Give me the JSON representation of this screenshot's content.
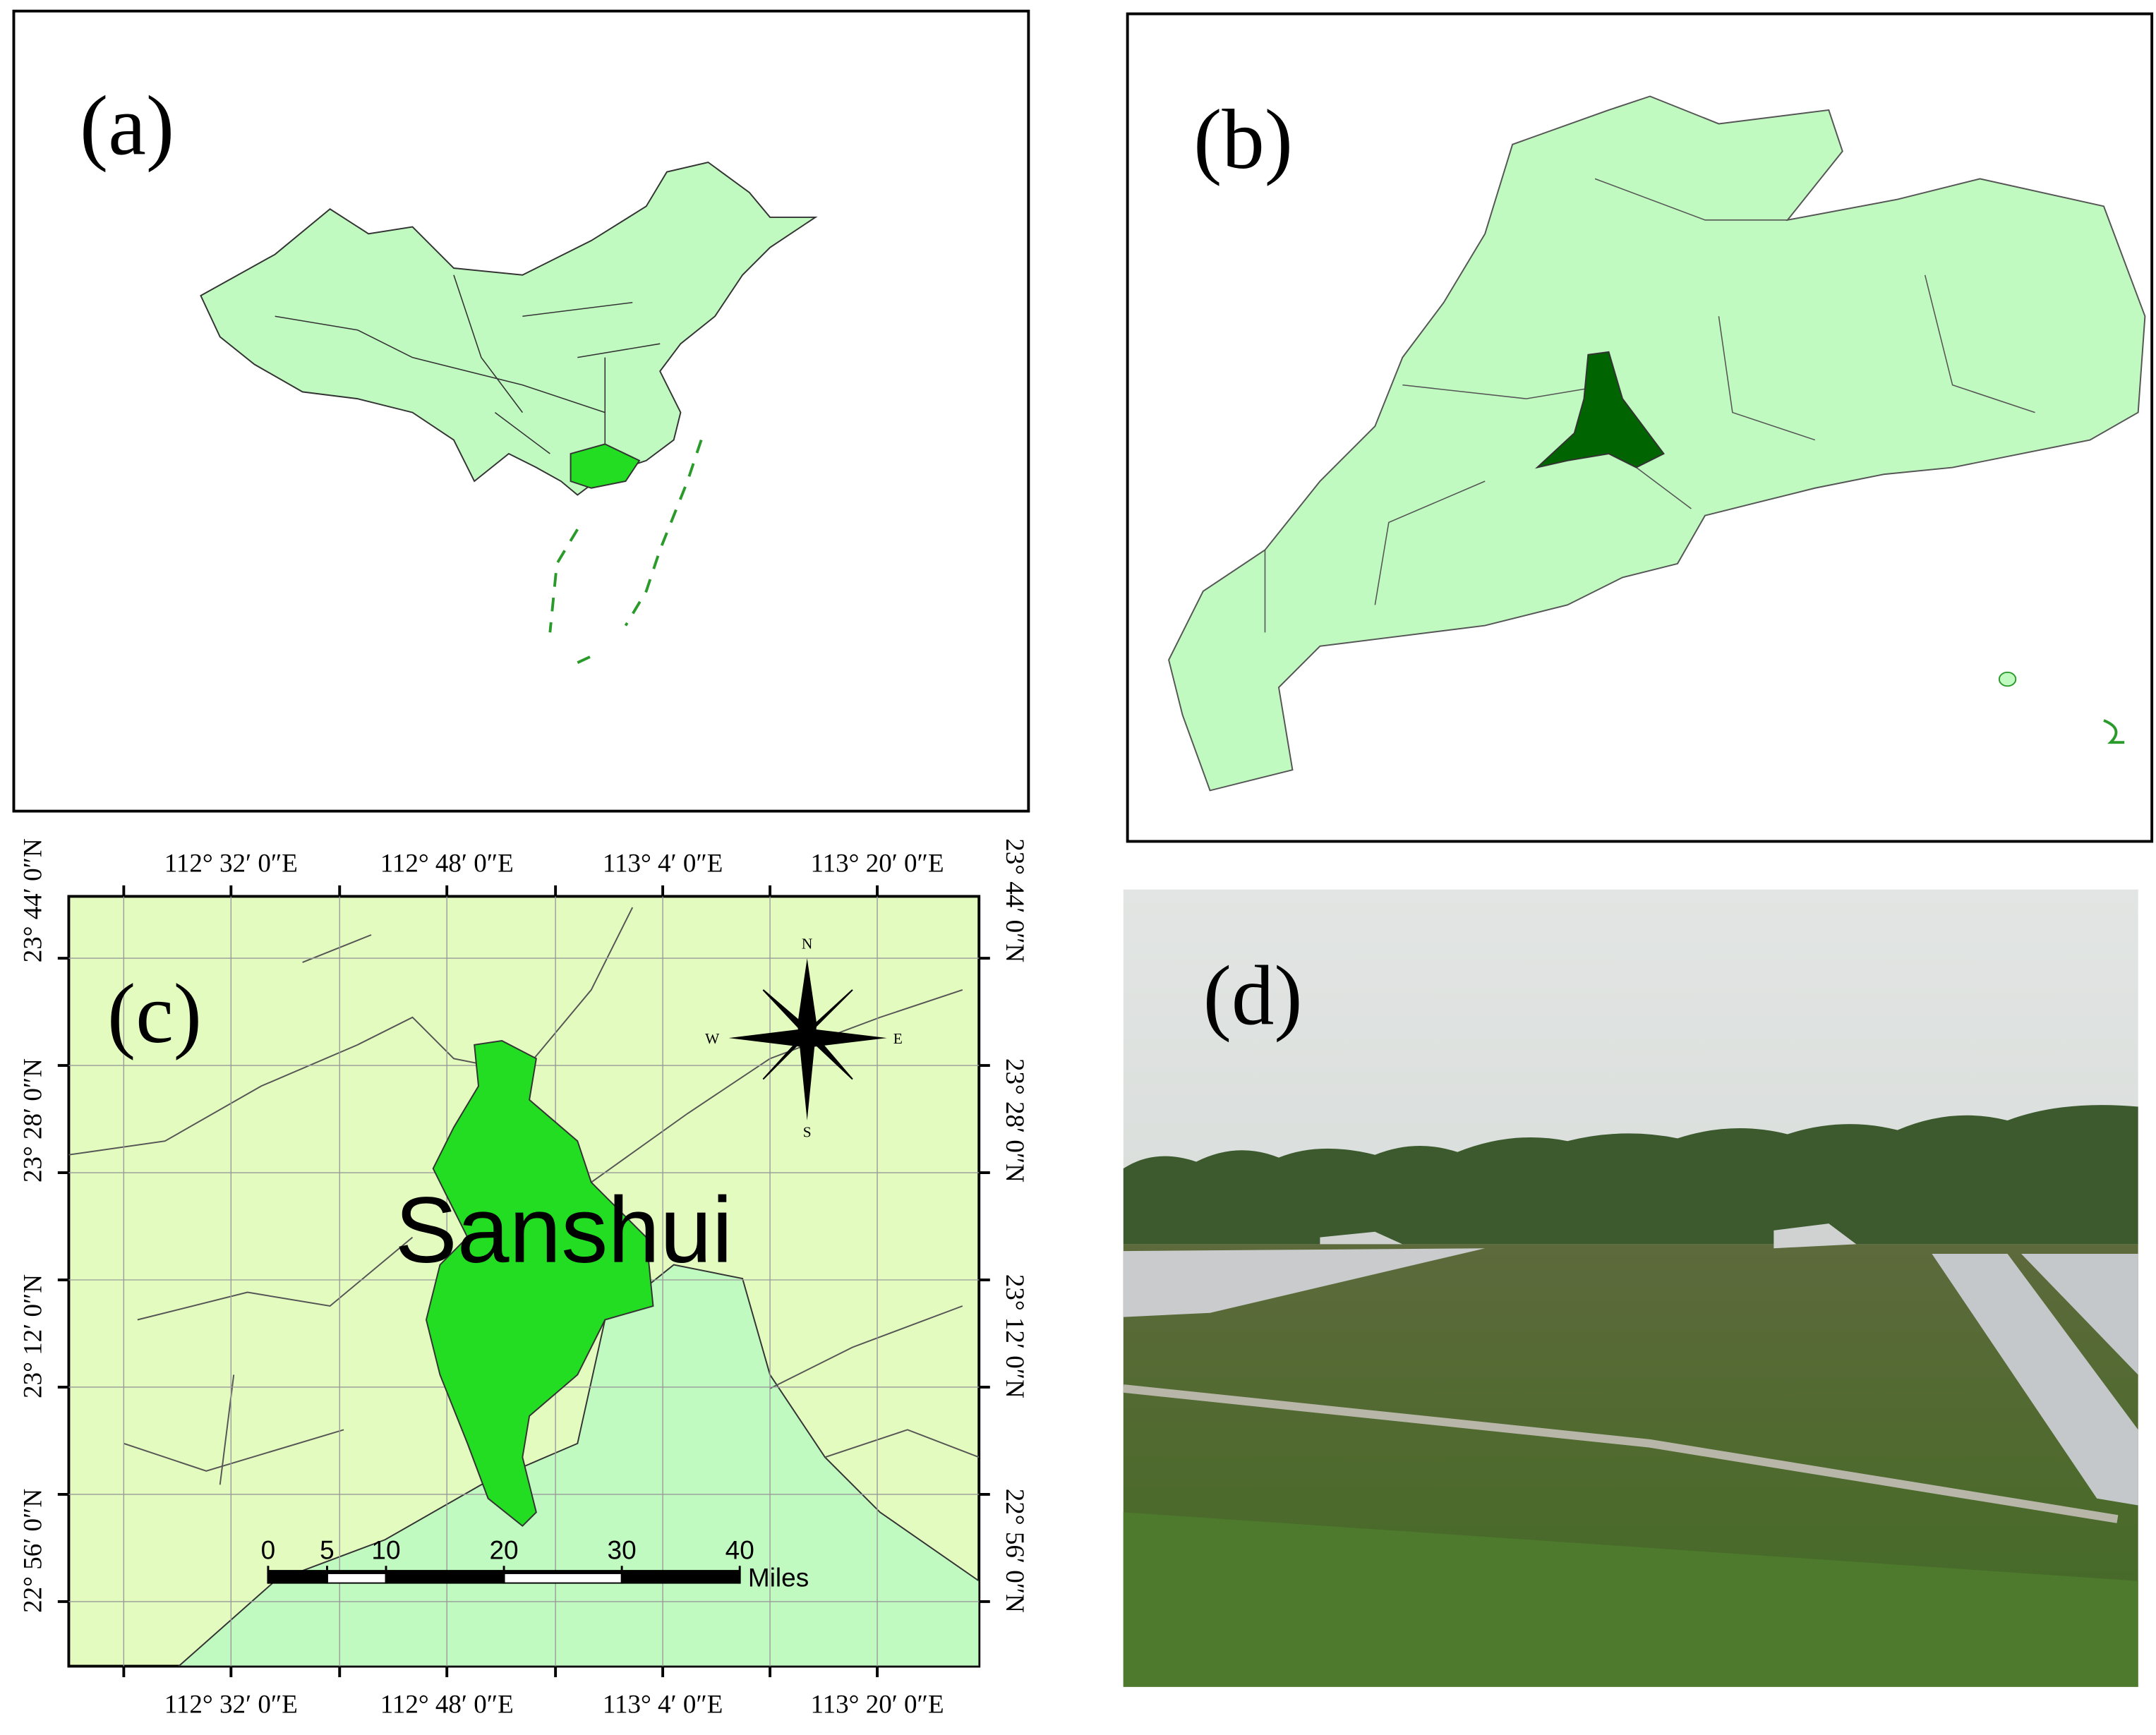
{
  "panels": [
    {
      "label": "(a)"
    },
    {
      "label": "(b)"
    },
    {
      "label": "(c)",
      "place": "Sanshui",
      "lon_ticks": [
        "112°  32′ 0″E",
        "112°  48′ 0″E",
        "113°  4′ 0″E",
        "113°  20′ 0″E"
      ],
      "lat_ticks": [
        "23°  44′ 0″N",
        "23°  28′ 0″N",
        "23°  12′ 0″N",
        "22°  56′ 0″N"
      ],
      "compass": {
        "n": "N",
        "e": "E",
        "s": "S",
        "w": "W"
      },
      "scale": {
        "ticks": [
          0,
          5,
          10,
          20,
          30,
          40
        ],
        "unit": "Miles"
      }
    },
    {
      "label": "(d)"
    }
  ]
}
